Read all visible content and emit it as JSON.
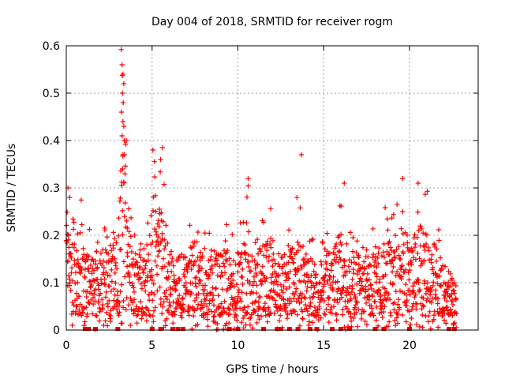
{
  "chart_data": {
    "type": "scatter",
    "title": "Day 004 of 2018, SRMTID for receiver rogm",
    "xlabel": "GPS time / hours",
    "ylabel": "SRMTID / TECUs",
    "xlim": [
      0,
      24
    ],
    "ylim": [
      0,
      0.6
    ],
    "x_ticks": [
      0,
      5,
      10,
      15,
      20
    ],
    "x_tick_labels": [
      "0",
      "5",
      "10",
      "15",
      "20"
    ],
    "y_ticks": [
      0,
      0.1,
      0.2,
      0.3,
      0.4,
      0.5,
      0.6
    ],
    "y_tick_labels": [
      "0",
      "0.1",
      "0.2",
      "0.3",
      "0.4",
      "0.5",
      "0.6"
    ],
    "grid": true,
    "marker": "+",
    "color": "#ff0000",
    "zero_bar_color": "#e00000",
    "series": [
      {
        "name": "SRMTID",
        "envelope": [
          [
            0.0,
            0.32
          ],
          [
            0.3,
            0.25
          ],
          [
            0.7,
            0.22
          ],
          [
            1.0,
            0.3
          ],
          [
            1.5,
            0.2
          ],
          [
            2.0,
            0.22
          ],
          [
            2.5,
            0.25
          ],
          [
            3.0,
            0.3
          ],
          [
            3.2,
            0.59
          ],
          [
            3.4,
            0.52
          ],
          [
            3.6,
            0.3
          ],
          [
            4.0,
            0.22
          ],
          [
            4.5,
            0.2
          ],
          [
            5.0,
            0.38
          ],
          [
            5.5,
            0.37
          ],
          [
            6.0,
            0.25
          ],
          [
            6.5,
            0.2
          ],
          [
            7.0,
            0.22
          ],
          [
            7.5,
            0.26
          ],
          [
            8.0,
            0.2
          ],
          [
            8.5,
            0.21
          ],
          [
            9.0,
            0.26
          ],
          [
            9.5,
            0.2
          ],
          [
            10.0,
            0.18
          ],
          [
            10.5,
            0.32
          ],
          [
            11.0,
            0.22
          ],
          [
            11.5,
            0.25
          ],
          [
            12.0,
            0.27
          ],
          [
            12.5,
            0.2
          ],
          [
            13.0,
            0.22
          ],
          [
            13.5,
            0.28
          ],
          [
            14.0,
            0.22
          ],
          [
            14.5,
            0.18
          ],
          [
            15.0,
            0.2
          ],
          [
            15.5,
            0.22
          ],
          [
            16.0,
            0.3
          ],
          [
            16.5,
            0.22
          ],
          [
            17.0,
            0.22
          ],
          [
            17.5,
            0.2
          ],
          [
            18.0,
            0.24
          ],
          [
            18.5,
            0.28
          ],
          [
            19.0,
            0.24
          ],
          [
            19.5,
            0.3
          ],
          [
            20.0,
            0.24
          ],
          [
            20.5,
            0.31
          ],
          [
            21.0,
            0.3
          ],
          [
            21.5,
            0.24
          ],
          [
            22.0,
            0.18
          ],
          [
            22.5,
            0.1
          ],
          [
            22.7,
            0.02
          ]
        ],
        "spikes": [
          [
            3.2,
            0.592
          ],
          [
            3.25,
            0.56
          ],
          [
            3.3,
            0.54
          ],
          [
            3.35,
            0.52
          ],
          [
            3.28,
            0.5
          ],
          [
            3.32,
            0.48
          ],
          [
            3.22,
            0.46
          ],
          [
            3.3,
            0.44
          ],
          [
            3.35,
            0.43
          ],
          [
            3.25,
            0.41
          ],
          [
            3.38,
            0.4
          ],
          [
            3.3,
            0.37
          ],
          [
            3.28,
            0.34
          ],
          [
            5.05,
            0.38
          ],
          [
            5.6,
            0.385
          ],
          [
            5.5,
            0.36
          ],
          [
            13.7,
            0.37
          ],
          [
            10.6,
            0.32
          ],
          [
            20.5,
            0.31
          ],
          [
            0.1,
            0.3
          ],
          [
            0.2,
            0.28
          ],
          [
            19.6,
            0.32
          ],
          [
            16.2,
            0.31
          ]
        ],
        "zero_points": [
          1.1,
          1.3,
          1.7,
          3.0,
          5.0,
          5.5,
          6.2,
          6.5,
          6.8,
          9.5,
          10.0,
          11.5,
          12.3,
          12.5,
          13.0,
          13.5,
          14.2,
          14.6,
          15.5,
          16.0,
          16.5,
          18.0,
          18.5,
          20.0,
          22.3,
          22.6
        ]
      }
    ]
  }
}
